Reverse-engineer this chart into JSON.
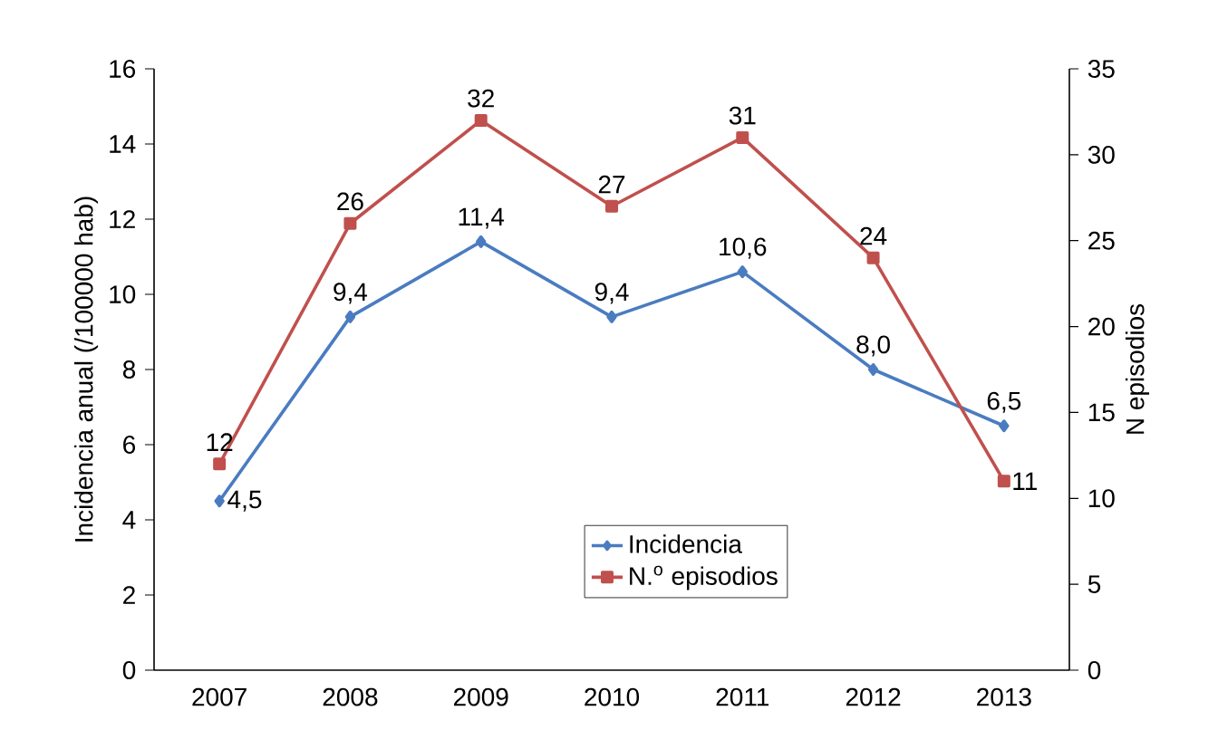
{
  "chart_data": {
    "type": "line",
    "categories": [
      "2007",
      "2008",
      "2009",
      "2010",
      "2011",
      "2012",
      "2013"
    ],
    "ylabel": "Incidencia anual (/100000 hab)",
    "y2label": "N episodios",
    "ylim": [
      0,
      16
    ],
    "yticks": [
      0,
      2,
      4,
      6,
      8,
      10,
      12,
      14,
      16
    ],
    "y2lim": [
      0,
      35
    ],
    "y2ticks": [
      0,
      5,
      10,
      15,
      20,
      25,
      30,
      35
    ],
    "legend": "bottom",
    "grid": false,
    "series": [
      {
        "name": "Incidencia",
        "color": "#4a7cc0",
        "marker": "diamond",
        "values": [
          4.5,
          9.4,
          11.4,
          9.4,
          10.6,
          8.0,
          6.5
        ],
        "value_labels": [
          "4,5",
          "9,4",
          "11,4",
          "9,4",
          "10,6",
          "8,0",
          "6,5"
        ]
      },
      {
        "name": "N.$^{o}$ episodios",
        "color": "#c0504d",
        "marker": "square",
        "axis": "y2",
        "values": [
          12,
          26,
          32,
          27,
          31,
          24,
          11
        ],
        "value_labels": [
          "12",
          "26",
          "32",
          "27",
          "31",
          "24",
          "11"
        ]
      }
    ]
  }
}
